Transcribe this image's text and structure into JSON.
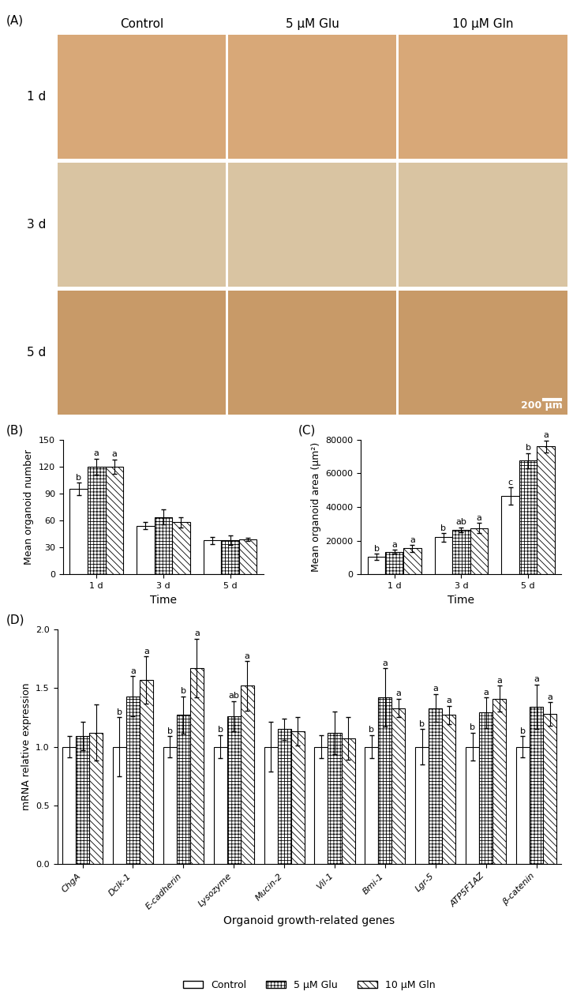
{
  "image_panel": {
    "panel": "(A)",
    "columns": [
      "Control",
      "5 μM Glu",
      "10 μM Gln"
    ],
    "rows": [
      "1 d",
      "3 d",
      "5 d"
    ],
    "scale_bar": "200 μm"
  },
  "chart_data": [
    {
      "type": "bar",
      "panel": "(B)",
      "x_label": "Time",
      "y_label": "Mean organoid number",
      "categories": [
        "1 d",
        "3 d",
        "5 d"
      ],
      "ylim": [
        0,
        150
      ],
      "yticks": [
        0,
        30,
        60,
        90,
        120,
        150
      ],
      "grid": false,
      "series": [
        {
          "name": "Control",
          "color": "#ffffff",
          "values": [
            95,
            54,
            38
          ],
          "error": [
            7,
            4,
            4
          ],
          "letters": [
            "b",
            null,
            null
          ]
        },
        {
          "name": "5 μM Glu",
          "color": "#ffffff",
          "values": [
            120,
            64,
            38
          ],
          "error": [
            9,
            8,
            5
          ],
          "letters": [
            "a",
            null,
            null
          ]
        },
        {
          "name": "10 μM Gln",
          "color": "#ffffff",
          "values": [
            120,
            58,
            39
          ],
          "error": [
            8,
            6,
            2
          ],
          "letters": [
            "a",
            null,
            null
          ]
        }
      ]
    },
    {
      "type": "bar",
      "panel": "(C)",
      "x_label": "Time",
      "y_label": "Mean organoid area (μm²)",
      "categories": [
        "1 d",
        "3 d",
        "5 d"
      ],
      "ylim": [
        0,
        80000
      ],
      "yticks": [
        0,
        20000,
        40000,
        60000,
        80000
      ],
      "grid": false,
      "series": [
        {
          "name": "Control",
          "color": "#ffffff",
          "values": [
            10500,
            22000,
            46500
          ],
          "error": [
            1800,
            2500,
            5000
          ],
          "letters": [
            "b",
            "b",
            "c"
          ]
        },
        {
          "name": "5 μM Glu",
          "color": "#ffffff",
          "values": [
            13500,
            26500,
            67500
          ],
          "error": [
            1200,
            1500,
            4500
          ],
          "letters": [
            "a",
            "ab",
            "b"
          ]
        },
        {
          "name": "10 μM Gln",
          "color": "#ffffff",
          "values": [
            15500,
            27500,
            76000
          ],
          "error": [
            2000,
            3000,
            3500
          ],
          "letters": [
            "a",
            "a",
            "a"
          ]
        }
      ]
    },
    {
      "type": "bar",
      "panel": "(D)",
      "x_label": "Organoid growth-related genes",
      "y_label": "mRNA relative expression",
      "categories": [
        "ChgA",
        "Dclk-1",
        "E-cadherin",
        "Lysozyme",
        "Mucin-2",
        "Vil-1",
        "Bmi-1",
        "Lgr-5",
        "ATP5F1AZ",
        "β-catenin"
      ],
      "ylim": [
        0,
        2.0
      ],
      "yticks": [
        {
          "value": 0,
          "label": "0.0"
        },
        {
          "value": 0.5,
          "label": "0.5"
        },
        {
          "value": 1.0,
          "label": "1.0"
        },
        {
          "value": 1.5,
          "label": "1.5"
        },
        {
          "value": 2.0,
          "label": "2.0"
        }
      ],
      "grid": false,
      "legend": "bottom",
      "series": [
        {
          "name": "Control",
          "color": "#ffffff",
          "values": [
            1.0,
            1.0,
            1.0,
            1.0,
            1.0,
            1.0,
            1.0,
            1.0,
            1.0,
            1.0
          ],
          "error": [
            0.09,
            0.25,
            0.09,
            0.1,
            0.21,
            0.1,
            0.1,
            0.15,
            0.12,
            0.09
          ],
          "letters": [
            null,
            "b",
            "b",
            "b",
            null,
            null,
            "b",
            "b",
            "b",
            "b"
          ]
        },
        {
          "name": "5 μM Glu",
          "color": "#ffffff",
          "values": [
            1.09,
            1.43,
            1.27,
            1.26,
            1.15,
            1.12,
            1.42,
            1.33,
            1.29,
            1.34
          ],
          "error": [
            0.12,
            0.17,
            0.16,
            0.13,
            0.09,
            0.18,
            0.25,
            0.12,
            0.13,
            0.19
          ],
          "letters": [
            null,
            "a",
            "b",
            "ab",
            null,
            null,
            "a",
            "a",
            "a",
            "a"
          ]
        },
        {
          "name": "10 μM Gln",
          "color": "#ffffff",
          "values": [
            1.12,
            1.57,
            1.67,
            1.52,
            1.13,
            1.07,
            1.33,
            1.27,
            1.41,
            1.28
          ],
          "error": [
            0.24,
            0.2,
            0.25,
            0.21,
            0.12,
            0.18,
            0.08,
            0.08,
            0.11,
            0.1
          ],
          "letters": [
            null,
            "a",
            "a",
            "a",
            null,
            null,
            "a",
            "a",
            "a",
            "a"
          ]
        }
      ]
    }
  ]
}
